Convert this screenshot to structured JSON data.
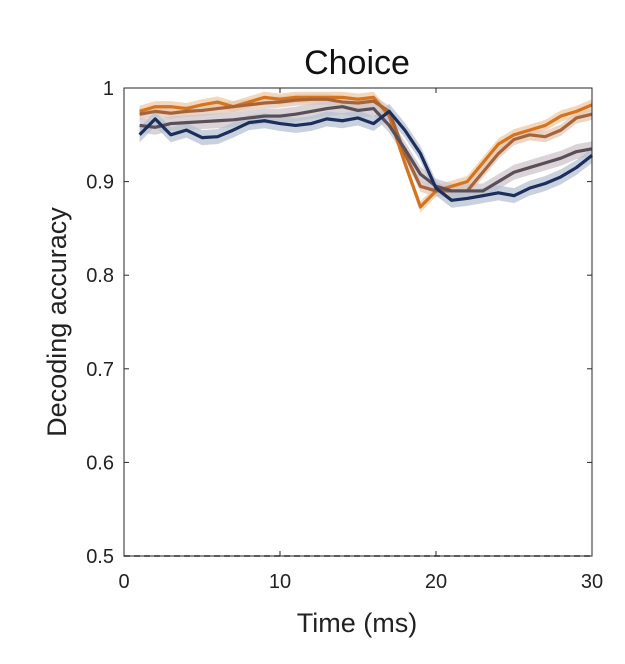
{
  "chart_data": {
    "type": "line",
    "title": "Choice",
    "xlabel": "Time (ms)",
    "ylabel": "Decoding accuracy",
    "xlim": [
      0,
      30
    ],
    "ylim": [
      0.5,
      1.0
    ],
    "xticks": [
      0,
      10,
      20,
      30
    ],
    "yticks": [
      0.5,
      0.6,
      0.7,
      0.8,
      0.9,
      1
    ],
    "ytick_labels": [
      "0.5",
      "0.6",
      "0.7",
      "0.8",
      "0.9",
      "1"
    ],
    "grid": false,
    "legend": "none",
    "chance_level": 0.5,
    "x": [
      1,
      2,
      3,
      4,
      5,
      6,
      7,
      8,
      9,
      10,
      11,
      12,
      13,
      14,
      15,
      16,
      17,
      18,
      19,
      20,
      21,
      22,
      23,
      24,
      25,
      26,
      27,
      28,
      29,
      30
    ],
    "series": [
      {
        "color": "#d4741f",
        "band_color": "#f0c9a4",
        "values": [
          0.975,
          0.98,
          0.98,
          0.978,
          0.982,
          0.985,
          0.98,
          0.985,
          0.99,
          0.988,
          0.99,
          0.99,
          0.99,
          0.99,
          0.988,
          0.99,
          0.97,
          0.92,
          0.873,
          0.89,
          0.895,
          0.9,
          0.92,
          0.94,
          0.95,
          0.955,
          0.96,
          0.97,
          0.975,
          0.982
        ],
        "band": 0.006
      },
      {
        "color": "#a5643a",
        "band_color": "#e4c7b2",
        "values": [
          0.972,
          0.975,
          0.973,
          0.975,
          0.976,
          0.978,
          0.98,
          0.982,
          0.984,
          0.985,
          0.987,
          0.988,
          0.988,
          0.985,
          0.984,
          0.986,
          0.975,
          0.93,
          0.895,
          0.89,
          0.89,
          0.89,
          0.91,
          0.93,
          0.945,
          0.95,
          0.948,
          0.955,
          0.968,
          0.972
        ],
        "band": 0.006
      },
      {
        "color": "#5a4e57",
        "band_color": "#cdc6cb",
        "values": [
          0.96,
          0.958,
          0.962,
          0.963,
          0.964,
          0.965,
          0.966,
          0.968,
          0.97,
          0.97,
          0.972,
          0.975,
          0.978,
          0.98,
          0.976,
          0.978,
          0.96,
          0.935,
          0.908,
          0.895,
          0.89,
          0.89,
          0.89,
          0.9,
          0.91,
          0.915,
          0.92,
          0.925,
          0.932,
          0.935
        ],
        "band": 0.008
      },
      {
        "color": "#1c2f5a",
        "band_color": "#b7c0d3",
        "values": [
          0.95,
          0.967,
          0.95,
          0.955,
          0.947,
          0.948,
          0.955,
          0.963,
          0.965,
          0.962,
          0.96,
          0.962,
          0.967,
          0.965,
          0.968,
          0.962,
          0.975,
          0.955,
          0.93,
          0.893,
          0.88,
          0.882,
          0.885,
          0.888,
          0.885,
          0.893,
          0.898,
          0.905,
          0.915,
          0.928
        ],
        "band": 0.008
      }
    ]
  }
}
